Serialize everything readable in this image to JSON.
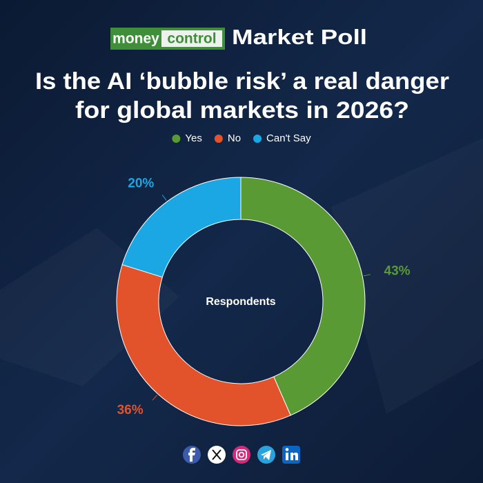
{
  "header": {
    "logo_part1": "money",
    "logo_part2": "control",
    "title": "Market Poll"
  },
  "chart_data": {
    "type": "donut",
    "title": [
      "Is the AI ‘bubble risk’ a real danger",
      "for global markets in 2026?"
    ],
    "center_label": "Respondents",
    "categories": [
      "Yes",
      "No",
      "Can't Say"
    ],
    "values": [
      43,
      36,
      20
    ],
    "value_labels": [
      "43%",
      "36%",
      "20%"
    ],
    "colors": [
      "#5a9a35",
      "#e2522b",
      "#1ba6e4"
    ],
    "legend": "top"
  }
}
